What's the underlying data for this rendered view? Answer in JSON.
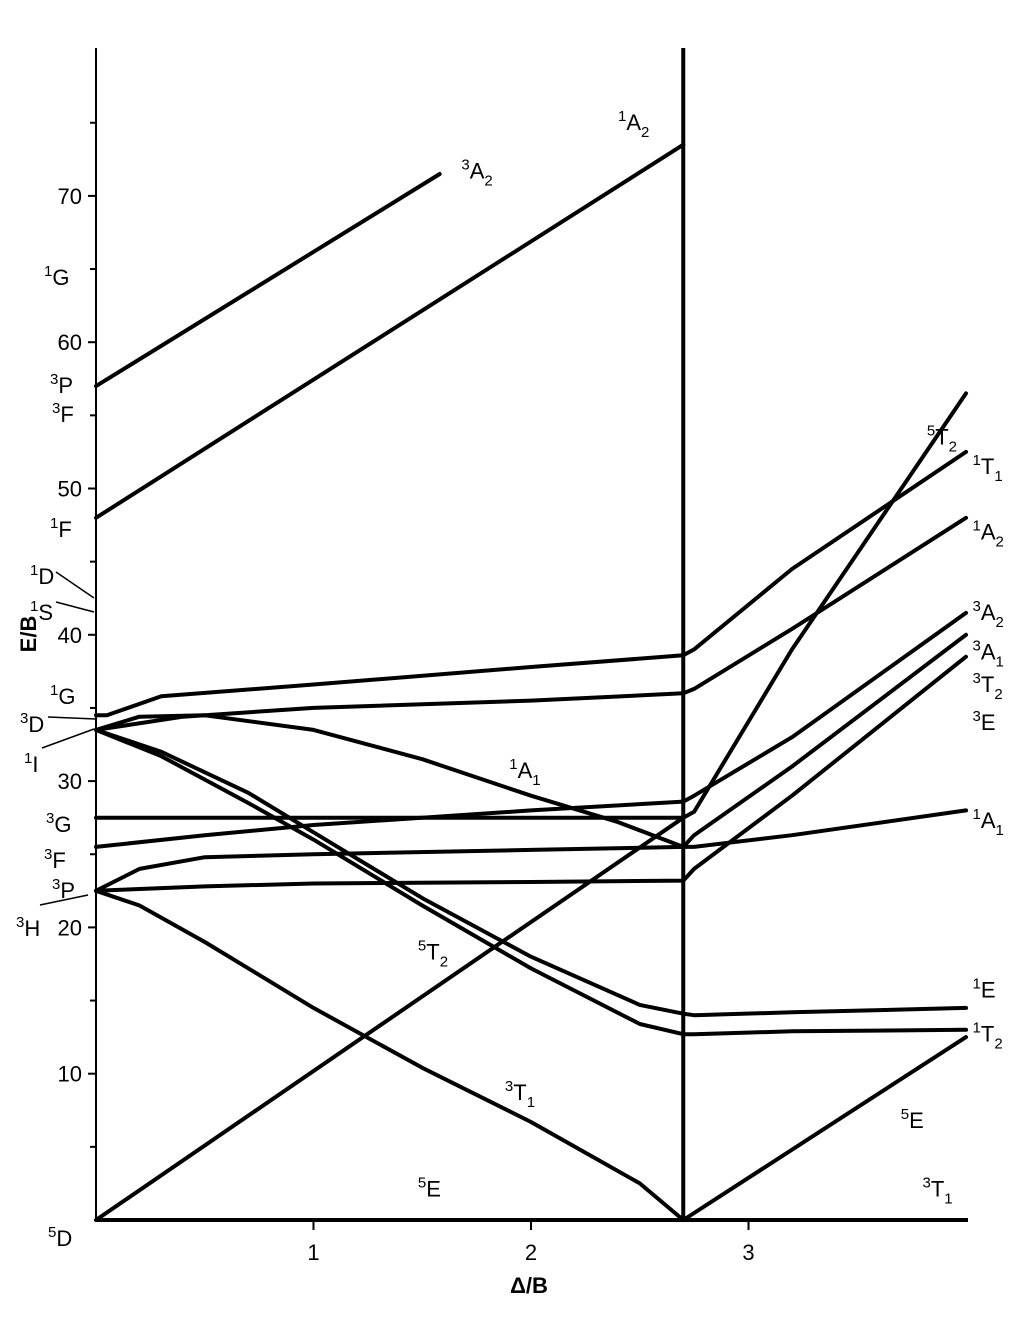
{
  "chart_data": {
    "type": "line",
    "title": "",
    "xlabel": "Δ/B",
    "ylabel": "E/B",
    "xlim": [
      0,
      4
    ],
    "ylim": [
      0,
      80
    ],
    "x_ticks": [
      1,
      2,
      3
    ],
    "y_ticks": [
      10,
      20,
      30,
      40,
      50,
      60,
      70
    ],
    "y_minor_ticks": [
      5,
      15,
      25,
      35,
      45,
      55,
      65,
      75
    ],
    "critical_x": 2.7,
    "free_ion_terms": [
      {
        "sup": "1",
        "base": "G",
        "sub": "",
        "E": 64
      },
      {
        "sup": "3",
        "base": "P",
        "sub": "",
        "E": 57
      },
      {
        "sup": "3",
        "base": "F",
        "sub": "",
        "E": 57
      },
      {
        "sup": "1",
        "base": "F",
        "sub": "",
        "E": 48
      },
      {
        "sup": "1",
        "base": "D",
        "sub": "",
        "E": 42.5
      },
      {
        "sup": "1",
        "base": "S",
        "sub": "",
        "E": 41.5
      },
      {
        "sup": "1",
        "base": "G",
        "sub": "",
        "E": 34.5
      },
      {
        "sup": "3",
        "base": "D",
        "sub": "",
        "E": 34.5
      },
      {
        "sup": "1",
        "base": "I",
        "sub": "",
        "E": 33.5
      },
      {
        "sup": "3",
        "base": "G",
        "sub": "",
        "E": 27.5
      },
      {
        "sup": "3",
        "base": "F",
        "sub": "",
        "E": 25.5
      },
      {
        "sup": "3",
        "base": "P",
        "sub": "",
        "E": 22.5
      },
      {
        "sup": "3",
        "base": "H",
        "sub": "",
        "E": 22.5
      },
      {
        "sup": "5",
        "base": "D",
        "sub": "",
        "E": 0
      }
    ],
    "series": [
      {
        "name": "³A₂",
        "x": [
          0,
          1.58
        ],
        "y": [
          57,
          71.5
        ]
      },
      {
        "name": "¹A₂",
        "x": [
          0,
          2.7
        ],
        "y": [
          48,
          73.5
        ]
      },
      {
        "name": "",
        "x": [
          0,
          0.05,
          0.3,
          1.0,
          2.0,
          2.7,
          2.75,
          3.2,
          4.0
        ],
        "y": [
          34.5,
          34.5,
          35.8,
          36.6,
          37.8,
          38.6,
          39.0,
          44.5,
          52.5
        ]
      },
      {
        "name": "",
        "x": [
          0,
          0.4,
          1.0,
          2.0,
          2.7,
          2.75,
          3.2,
          4.0
        ],
        "y": [
          33.5,
          34.4,
          35.0,
          35.5,
          36.0,
          36.3,
          40.4,
          48.0
        ]
      },
      {
        "name": "¹A₁",
        "x": [
          0,
          0.2,
          0.5,
          1.0,
          1.5,
          2.0,
          2.4,
          2.7,
          2.75,
          3.2,
          4.0
        ],
        "y": [
          33.5,
          34.4,
          34.5,
          33.5,
          31.5,
          29.0,
          27.2,
          25.5,
          25.5,
          26.3,
          28.0
        ]
      },
      {
        "name": "",
        "x": [
          0,
          0.5,
          1.0,
          2.0,
          2.7
        ],
        "y": [
          27.5,
          27.5,
          27.5,
          27.5,
          27.5
        ]
      },
      {
        "name": "",
        "x": [
          0,
          0.5,
          1.0,
          2.0,
          2.7,
          2.75,
          3.2,
          4.0
        ],
        "y": [
          25.5,
          26.3,
          27.0,
          28.0,
          28.6,
          29.0,
          33.0,
          41.5
        ]
      },
      {
        "name": "",
        "x": [
          0,
          0.2,
          0.5,
          1.0,
          2.0,
          2.7,
          2.75,
          3.2,
          4.0
        ],
        "y": [
          22.5,
          24.0,
          24.8,
          25.0,
          25.3,
          25.5,
          26.3,
          31.0,
          40.0
        ]
      },
      {
        "name": "",
        "x": [
          0,
          0.5,
          1.0,
          2.0,
          2.7,
          2.75,
          3.2,
          4.0
        ],
        "y": [
          22.5,
          22.8,
          23.0,
          23.1,
          23.2,
          24.0,
          29.0,
          38.5
        ]
      },
      {
        "name": "",
        "x": [
          0,
          2.7,
          2.75,
          3.2,
          4.0
        ],
        "y": [
          0,
          27.5,
          27.9,
          39.0,
          56.5
        ]
      },
      {
        "name": "",
        "x": [
          0,
          0.3,
          0.7,
          1.0,
          1.5,
          2.0,
          2.5,
          2.7,
          2.75,
          3.2,
          4.0
        ],
        "y": [
          33.5,
          32.0,
          29.2,
          26.5,
          22.0,
          18.0,
          14.7,
          14.1,
          14.0,
          14.2,
          14.5
        ]
      },
      {
        "name": "",
        "x": [
          0,
          0.3,
          0.7,
          1.0,
          1.5,
          2.0,
          2.5,
          2.7,
          2.75,
          3.2,
          4.0
        ],
        "y": [
          33.5,
          31.7,
          28.5,
          26.0,
          21.5,
          17.2,
          13.4,
          12.7,
          12.7,
          12.9,
          13.0
        ]
      },
      {
        "name": "³T₁",
        "x": [
          0,
          0.2,
          0.5,
          1.0,
          1.5,
          2.0,
          2.5,
          2.7
        ],
        "y": [
          22.5,
          21.5,
          19.0,
          14.5,
          10.4,
          6.7,
          2.5,
          0
        ]
      },
      {
        "name": "⁵E",
        "x": [
          2.7,
          4.0
        ],
        "y": [
          0,
          12.5
        ]
      }
    ],
    "axis_labels": [
      {
        "sup": "3",
        "base": "A",
        "sub": "2",
        "x": 1.68,
        "y": 71.2
      },
      {
        "sup": "1",
        "base": "A",
        "sub": "2",
        "x": 2.4,
        "y": 74.5
      },
      {
        "sup": "5",
        "base": "T",
        "sub": "2",
        "x": 3.82,
        "y": 53.0
      },
      {
        "sup": "1",
        "base": "T",
        "sub": "1",
        "x": 4.03,
        "y": 51.0
      },
      {
        "sup": "1",
        "base": "A",
        "sub": "2",
        "x": 4.03,
        "y": 46.5
      },
      {
        "sup": "3",
        "base": "A",
        "sub": "2",
        "x": 4.03,
        "y": 41.0
      },
      {
        "sup": "3",
        "base": "A",
        "sub": "1",
        "x": 4.03,
        "y": 38.3
      },
      {
        "sup": "3",
        "base": "T",
        "sub": "2",
        "x": 4.03,
        "y": 36.1
      },
      {
        "sup": "3",
        "base": "E",
        "sub": "",
        "x": 4.03,
        "y": 33.5
      },
      {
        "sup": "1",
        "base": "A",
        "sub": "1",
        "x": 4.03,
        "y": 26.8
      },
      {
        "sup": "1",
        "base": "A",
        "sub": "1",
        "x": 1.9,
        "y": 30.2
      },
      {
        "sup": "1",
        "base": "E",
        "sub": "",
        "x": 4.03,
        "y": 15.2
      },
      {
        "sup": "1",
        "base": "T",
        "sub": "2",
        "x": 4.03,
        "y": 12.2
      },
      {
        "sup": "5",
        "base": "T",
        "sub": "2",
        "x": 1.48,
        "y": 17.8
      },
      {
        "sup": "3",
        "base": "T",
        "sub": "1",
        "x": 1.88,
        "y": 8.2
      },
      {
        "sup": "5",
        "base": "E",
        "sub": "",
        "x": 3.7,
        "y": 6.3
      },
      {
        "sup": "5",
        "base": "E",
        "sub": "",
        "x": 1.48,
        "y": 1.6
      },
      {
        "sup": "3",
        "base": "T",
        "sub": "1",
        "x": 3.8,
        "y": 1.6
      }
    ]
  }
}
